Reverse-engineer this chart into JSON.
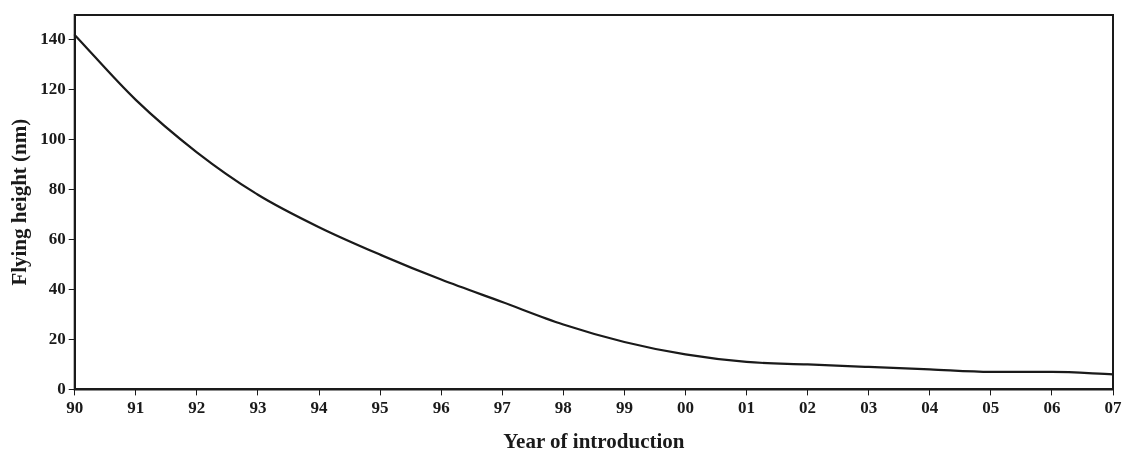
{
  "chart_data": {
    "type": "line",
    "xlabel": "Year of introduction",
    "ylabel": "Flying height (nm)",
    "categories": [
      "90",
      "91",
      "92",
      "93",
      "94",
      "95",
      "96",
      "97",
      "98",
      "99",
      "00",
      "01",
      "02",
      "03",
      "04",
      "05",
      "06",
      "07"
    ],
    "series": [
      {
        "color": "#1a1a1a",
        "values": [
          142,
          116,
          95,
          78,
          65,
          54,
          44,
          35,
          26,
          19,
          14,
          11,
          10,
          9,
          8,
          7,
          7,
          6
        ]
      }
    ],
    "ylim": [
      0,
      150
    ],
    "yticks": [
      0,
      20,
      40,
      60,
      80,
      100,
      120,
      140
    ],
    "grid": false,
    "legend": false,
    "marker": "none",
    "line_style": "solid"
  }
}
